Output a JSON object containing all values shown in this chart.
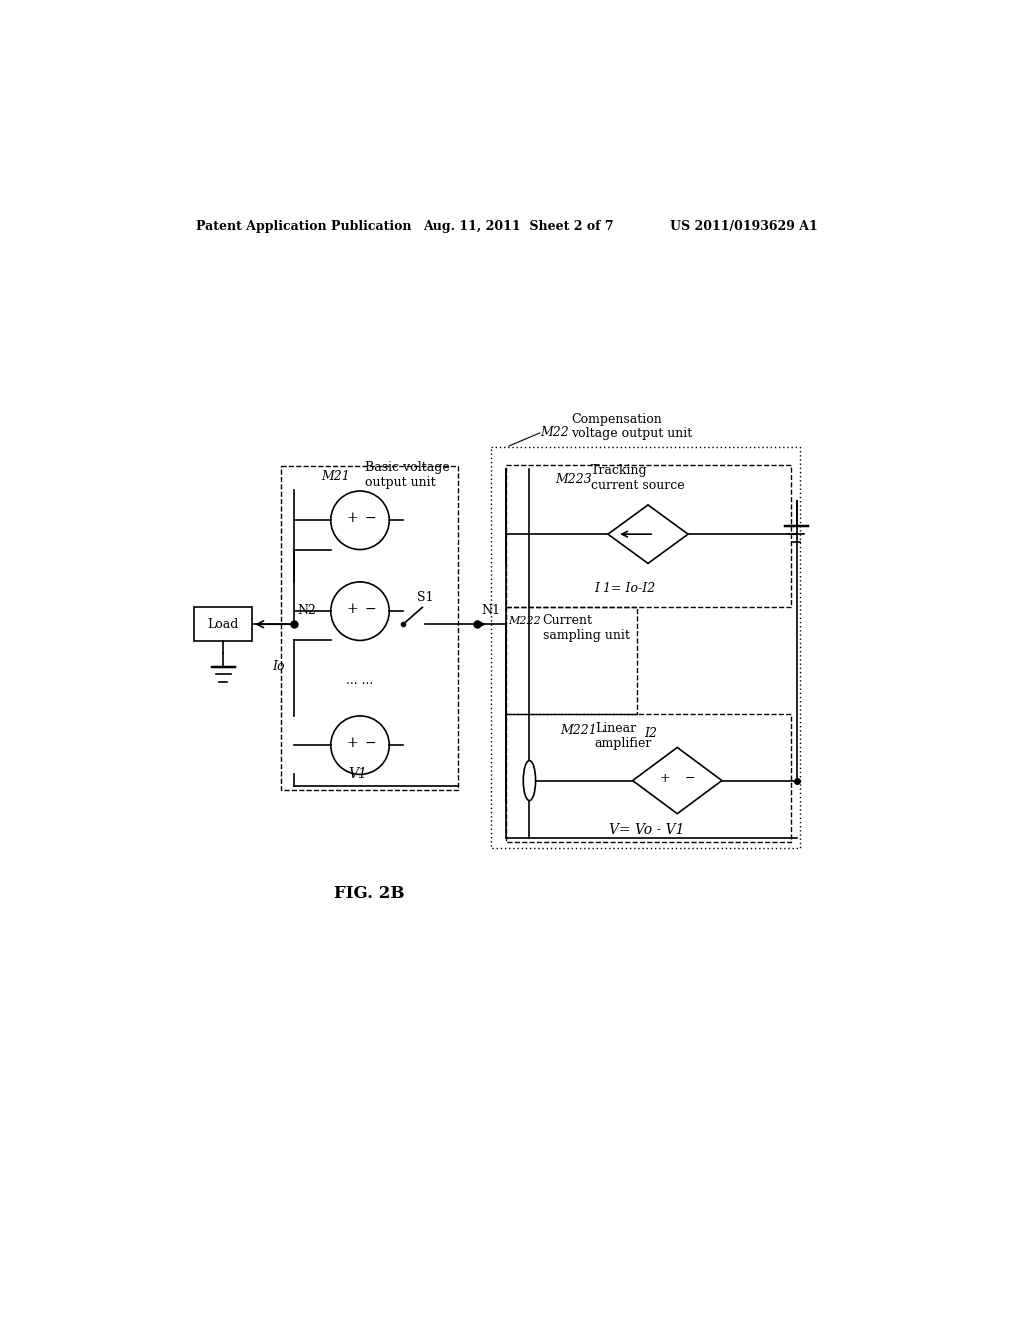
{
  "bg_color": "#ffffff",
  "header_left": "Patent Application Publication",
  "header_mid": "Aug. 11, 2011  Sheet 2 of 7",
  "header_right": "US 2011/0193629 A1",
  "fig_label": "FIG. 2B",
  "label_M21": "M21",
  "label_M22": "M22",
  "label_M221": "M221",
  "label_M222": "M222",
  "label_M223": "M223",
  "text_basic_voltage": "Basic voltage\noutput unit",
  "text_comp_voltage": "Compensation\nvoltage output unit",
  "text_tracking": "Tracking\ncurrent source",
  "text_current_sampling": "Current\nsampling unit",
  "text_linear_amplifier": "Linear\namplifier",
  "text_N1": "N1",
  "text_N2": "N2",
  "text_S1": "S1",
  "text_Load": "Load",
  "text_Io": "Io",
  "text_V1": "V1",
  "text_V_eq": "V= Vo - V1",
  "text_I1_eq": "I 1= Io-I2",
  "text_I2": "I2"
}
